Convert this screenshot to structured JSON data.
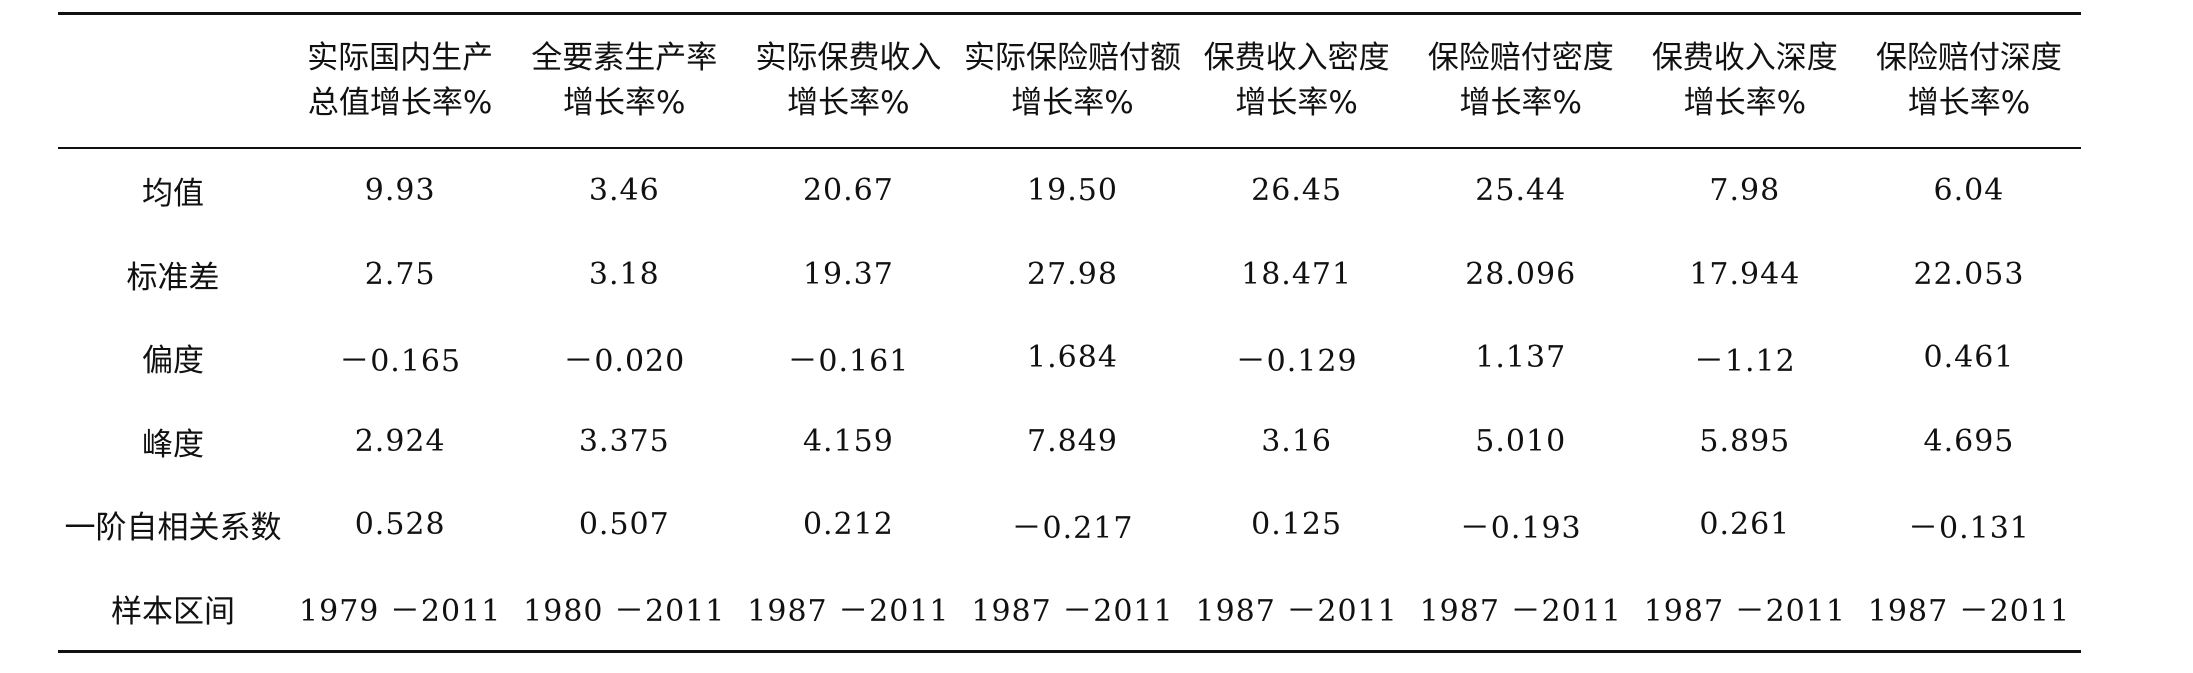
{
  "table": {
    "columns": [
      {
        "line1": "",
        "line2": ""
      },
      {
        "line1": "实际国内生产",
        "line2": "总值增长率%"
      },
      {
        "line1": "全要素生产率",
        "line2": "增长率%"
      },
      {
        "line1": "实际保费收入",
        "line2": "增长率%"
      },
      {
        "line1": "实际保险赔付额",
        "line2": "增长率%"
      },
      {
        "line1": "保费收入密度",
        "line2": "增长率%"
      },
      {
        "line1": "保险赔付密度",
        "line2": "增长率%"
      },
      {
        "line1": "保费收入深度",
        "line2": "增长率%"
      },
      {
        "line1": "保险赔付深度",
        "line2": "增长率%"
      }
    ],
    "rows": [
      {
        "label": "均值",
        "cells": [
          "9.93",
          "3.46",
          "20.67",
          "19.50",
          "26.45",
          "25.44",
          "7.98",
          "6.04"
        ]
      },
      {
        "label": "标准差",
        "cells": [
          "2.75",
          "3.18",
          "19.37",
          "27.98",
          "18.471",
          "28.096",
          "17.944",
          "22.053"
        ]
      },
      {
        "label": "偏度",
        "cells": [
          "－0.165",
          "－0.020",
          "－0.161",
          "1.684",
          "－0.129",
          "1.137",
          "－1.12",
          "0.461"
        ]
      },
      {
        "label": "峰度",
        "cells": [
          "2.924",
          "3.375",
          "4.159",
          "7.849",
          "3.16",
          "5.010",
          "5.895",
          "4.695"
        ]
      },
      {
        "label": "一阶自相关系数",
        "cells": [
          "0.528",
          "0.507",
          "0.212",
          "－0.217",
          "0.125",
          "－0.193",
          "0.261",
          "－0.131"
        ]
      },
      {
        "label": "样本区间",
        "cells": [
          "1979 －2011",
          "1980 －2011",
          "1987 －2011",
          "1987 －2011",
          "1987 －2011",
          "1987 －2011",
          "1987 －2011",
          "1987 －2011"
        ]
      }
    ]
  }
}
